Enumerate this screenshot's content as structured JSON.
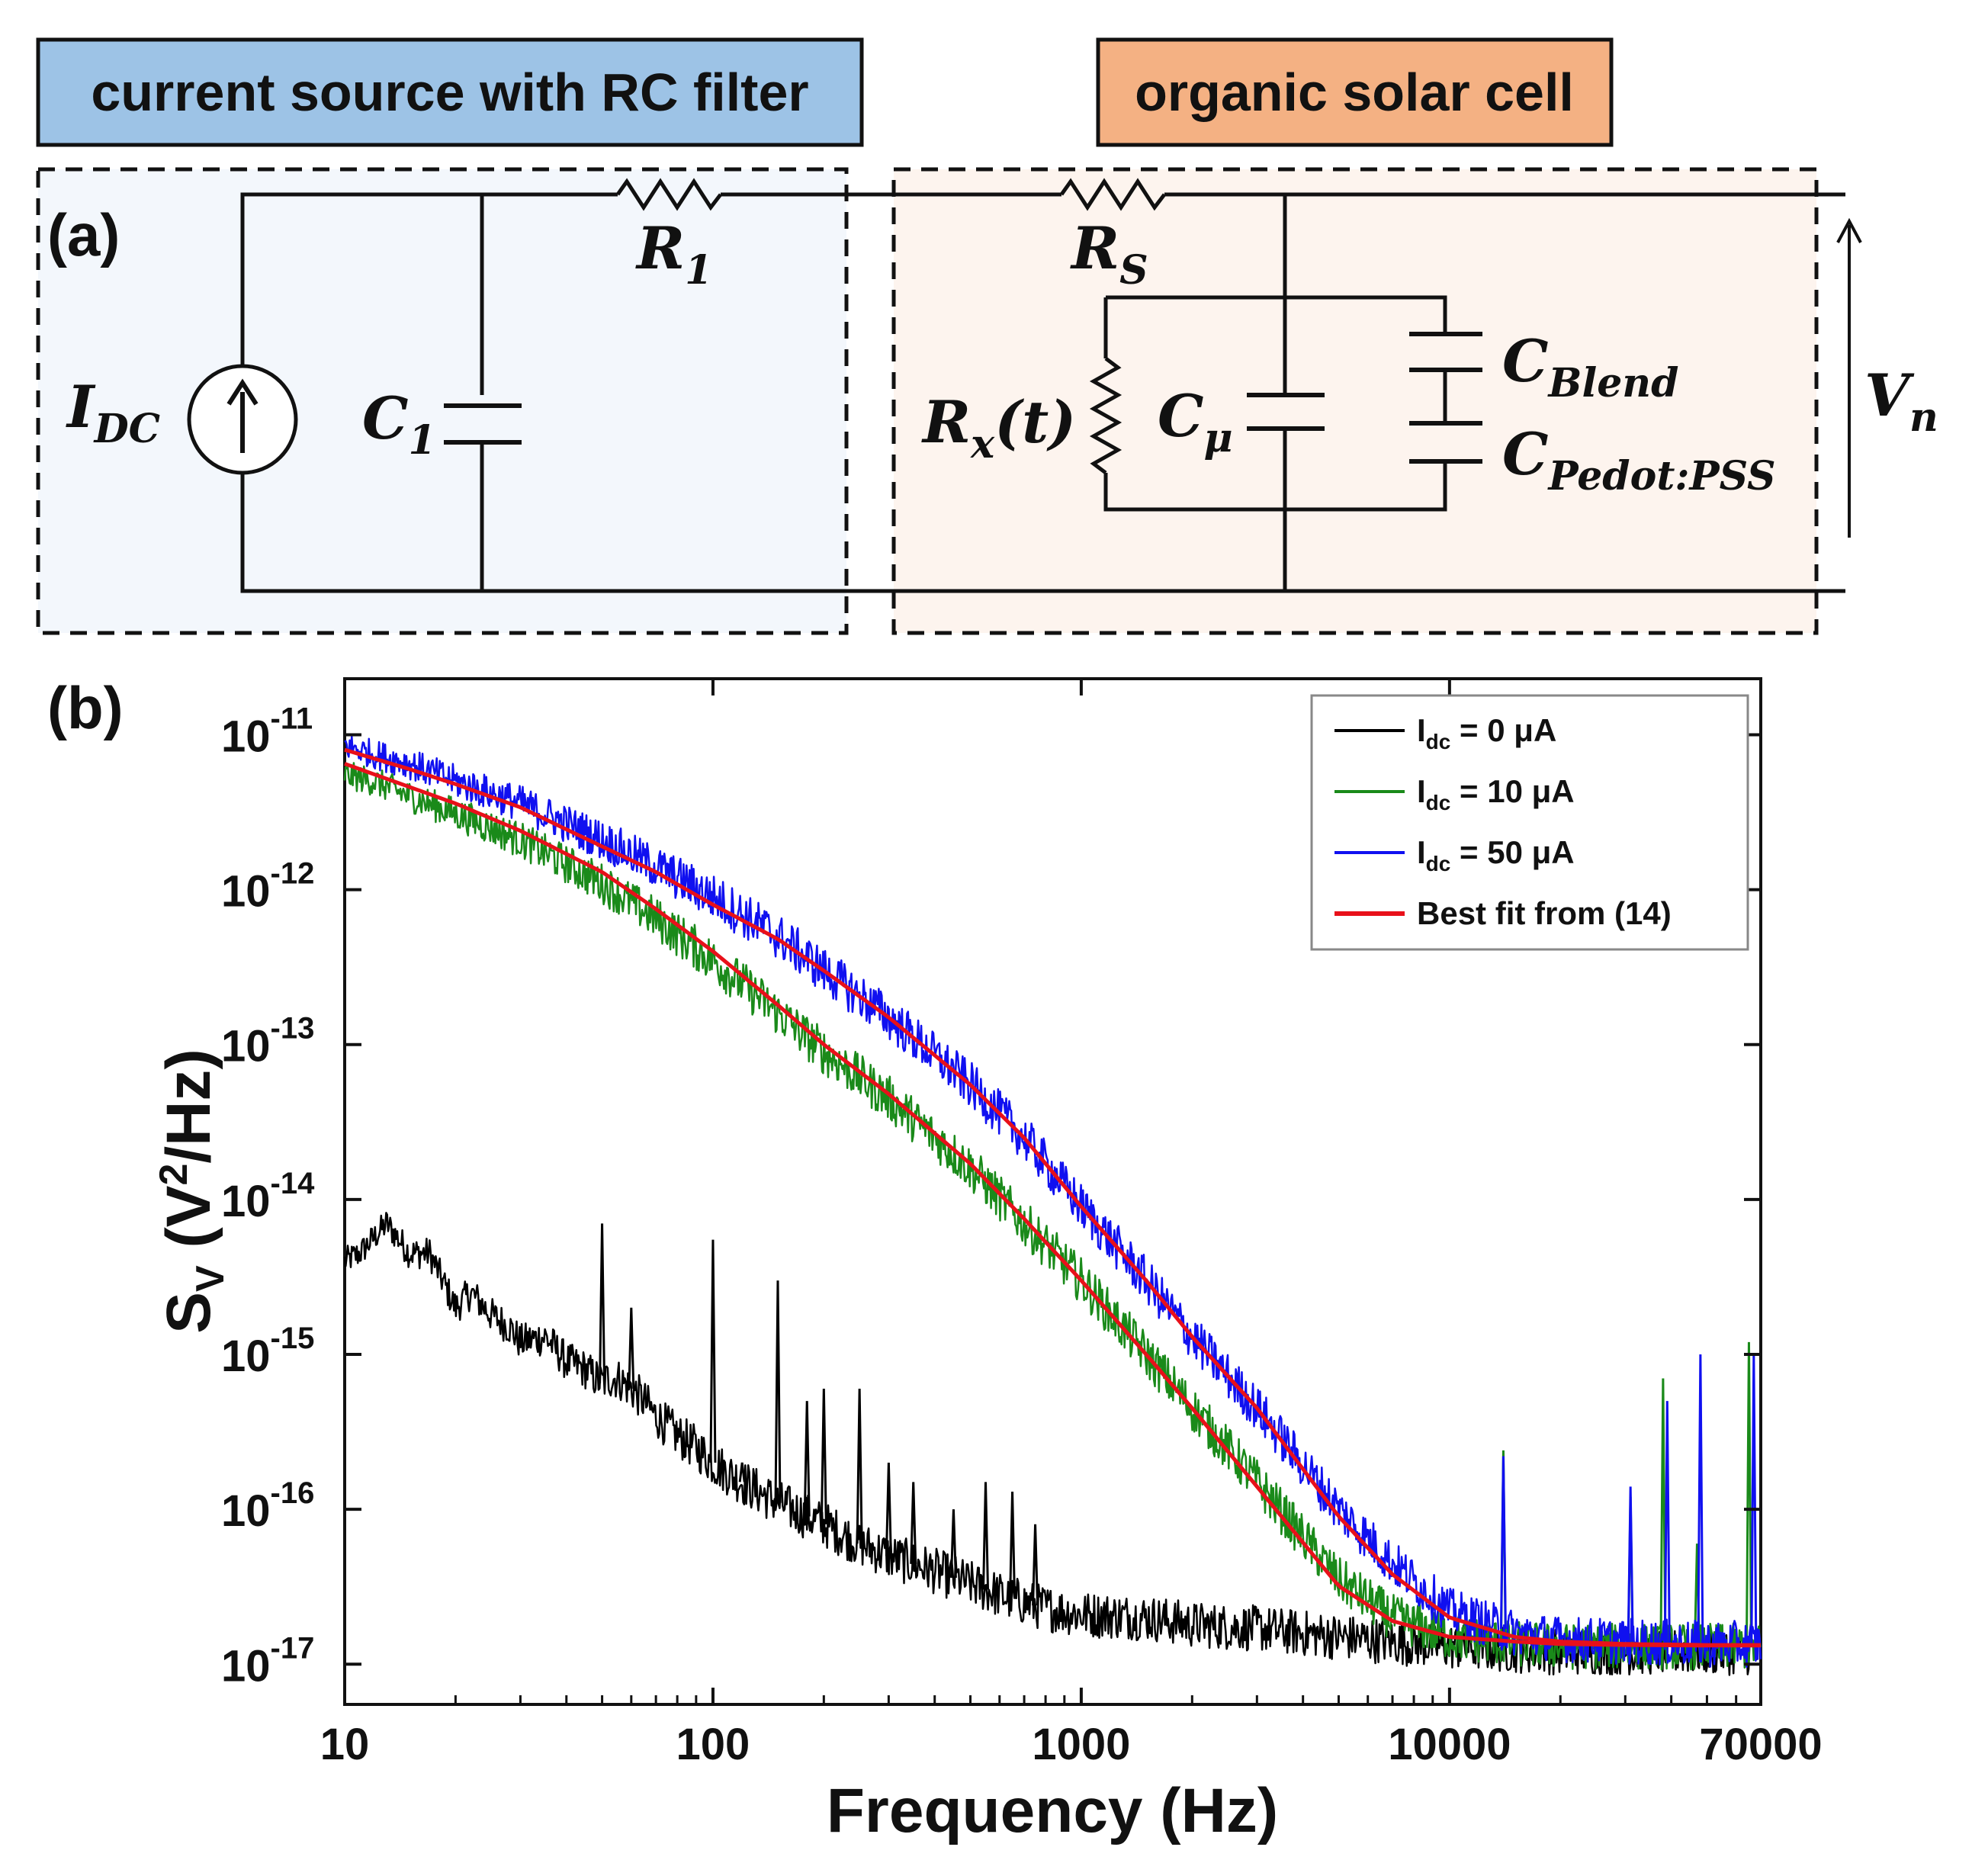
{
  "panel_a": {
    "label": "(a)",
    "header_left": "current source with RC filter",
    "header_right": "organic solar cell",
    "colors": {
      "left_fill": "#9DC3E6",
      "right_fill": "#F4B183"
    },
    "components": {
      "current_source": {
        "sym": "I",
        "sub": "DC"
      },
      "c1": {
        "sym": "C",
        "sub": "1"
      },
      "r1": {
        "sym": "R",
        "sub": "1"
      },
      "rs": {
        "sym": "R",
        "sub": "S"
      },
      "rx": {
        "sym": "R",
        "sub": "x",
        "suffix": "(t)"
      },
      "cmu": {
        "sym": "C",
        "sub": "μ"
      },
      "cblend": {
        "sym": "C",
        "sub": "Blend"
      },
      "cpedot": {
        "sym": "C",
        "sub": "Pedot:PSS"
      },
      "vn": {
        "sym": "V",
        "sub": "n"
      }
    }
  },
  "panel_b": {
    "label": "(b)"
  },
  "chart_data": {
    "type": "line",
    "xscale": "log",
    "yscale": "log",
    "xlim": [
      10,
      70000
    ],
    "ylim": [
      5.5e-18,
      2.3e-11
    ],
    "xlabel": "Frequency (Hz)",
    "ylabel": {
      "base": "S",
      "sub": "V",
      "unit_open": " (V",
      "sup": "2",
      "unit_close": "/Hz)"
    },
    "xticks": [
      {
        "value": 10,
        "label": "10"
      },
      {
        "value": 100,
        "label": "100"
      },
      {
        "value": 1000,
        "label": "1000"
      },
      {
        "value": 10000,
        "label": "10000"
      },
      {
        "value": 70000,
        "label": "70000"
      }
    ],
    "yticks": [
      {
        "value": 1e-11,
        "base": "10",
        "exp": "-11"
      },
      {
        "value": 1e-12,
        "base": "10",
        "exp": "-12"
      },
      {
        "value": 1e-13,
        "base": "10",
        "exp": "-13"
      },
      {
        "value": 1e-14,
        "base": "10",
        "exp": "-14"
      },
      {
        "value": 1e-15,
        "base": "10",
        "exp": "-15"
      },
      {
        "value": 1e-16,
        "base": "10",
        "exp": "-16"
      },
      {
        "value": 1e-17,
        "base": "10",
        "exp": "-17"
      }
    ],
    "legend": {
      "position": "top-right",
      "entries": [
        {
          "name": "Idc = 0 μA",
          "main": "I",
          "sub": "dc",
          "rest": " = 0 μA",
          "color": "#000000"
        },
        {
          "name": "Idc = 10 μA",
          "main": "I",
          "sub": "dc",
          "rest": " = 10 μA",
          "color": "#1A8A1A"
        },
        {
          "name": "Idc = 50 μA",
          "main": "I",
          "sub": "dc",
          "rest": " = 50 μA",
          "color": "#1010F0"
        },
        {
          "name": "Best fit from (14)",
          "main": "Best fit from (14)",
          "sub": "",
          "rest": "",
          "color": "#E8101A"
        }
      ]
    },
    "series": [
      {
        "name": "Idc = 0 μA",
        "color": "#000000",
        "x": [
          10,
          11,
          13,
          15,
          17,
          20,
          22,
          25,
          28,
          30,
          35,
          40,
          45,
          50,
          52,
          55,
          60,
          65,
          70,
          80,
          90,
          100,
          120,
          150,
          200,
          250,
          300,
          400,
          500,
          600,
          700,
          800,
          1000,
          1500,
          2000,
          3000,
          5000,
          7000,
          10000,
          20000,
          40000,
          70000
        ],
        "y": [
          4e-15,
          4.5e-15,
          7e-15,
          4.5e-15,
          4.5e-15,
          2e-15,
          2.5e-15,
          1.8e-15,
          1.5e-15,
          1.2e-15,
          1.3e-15,
          9e-16,
          8e-16,
          6.5e-16,
          7e-16,
          7e-16,
          6e-16,
          5e-16,
          4e-16,
          3e-16,
          2.5e-16,
          2e-16,
          1.5e-16,
          1.1e-16,
          8e-17,
          6e-17,
          5e-17,
          4e-17,
          3.3e-17,
          2.8e-17,
          2.5e-17,
          2.3e-17,
          2.1e-17,
          2e-17,
          1.8e-17,
          1.7e-17,
          1.5e-17,
          1.4e-17,
          1.3e-17,
          1.2e-17,
          1.2e-17,
          1.2e-17
        ],
        "spikes": [
          {
            "x": 50,
            "y": 7e-15
          },
          {
            "x": 60,
            "y": 2e-15
          },
          {
            "x": 100,
            "y": 5.5e-15
          },
          {
            "x": 120,
            "y": 2e-16
          },
          {
            "x": 150,
            "y": 3e-15
          },
          {
            "x": 180,
            "y": 5e-16
          },
          {
            "x": 200,
            "y": 6e-16
          },
          {
            "x": 250,
            "y": 6e-16
          },
          {
            "x": 300,
            "y": 2e-16
          },
          {
            "x": 350,
            "y": 1.5e-16
          },
          {
            "x": 450,
            "y": 1e-16
          },
          {
            "x": 550,
            "y": 1.5e-16
          },
          {
            "x": 650,
            "y": 1.3e-16
          },
          {
            "x": 750,
            "y": 8e-17
          }
        ]
      },
      {
        "name": "Idc = 10 μA",
        "color": "#1A8A1A",
        "x": [
          10,
          12,
          15,
          20,
          30,
          50,
          70,
          100,
          150,
          200,
          300,
          500,
          700,
          1000,
          1500,
          2000,
          3000,
          5000,
          7000,
          10000,
          15000,
          20000,
          30000,
          50000,
          70000
        ],
        "y": [
          5.5e-12,
          5e-12,
          4e-12,
          3.1e-12,
          2.1e-12,
          1.1e-12,
          6.5e-13,
          3.5e-13,
          1.6e-13,
          9e-14,
          4.5e-14,
          1.6e-14,
          7e-15,
          3e-15,
          1e-15,
          4.5e-16,
          1.5e-16,
          3.5e-17,
          2e-17,
          1.5e-17,
          1.35e-17,
          1.3e-17,
          1.3e-17,
          1.3e-17,
          1.3e-17
        ],
        "spikes": [
          {
            "x": 14000,
            "y": 2.4e-16
          },
          {
            "x": 31000,
            "y": 1.2e-16
          },
          {
            "x": 38000,
            "y": 7e-16
          },
          {
            "x": 47000,
            "y": 6e-17
          },
          {
            "x": 65000,
            "y": 1.2e-15
          }
        ]
      },
      {
        "name": "Idc = 50 μA",
        "color": "#1010F0",
        "x": [
          10,
          12,
          15,
          20,
          30,
          50,
          70,
          100,
          150,
          200,
          300,
          500,
          700,
          1000,
          1500,
          2000,
          3000,
          5000,
          7000,
          10000,
          15000,
          20000,
          30000,
          50000,
          70000
        ],
        "y": [
          8.5e-12,
          7.5e-12,
          6.5e-12,
          5e-12,
          3.6e-12,
          2.1e-12,
          1.4e-12,
          9e-13,
          5e-13,
          3e-13,
          1.5e-13,
          5.5e-14,
          2.5e-14,
          9e-15,
          3e-15,
          1.3e-15,
          4.5e-16,
          1e-16,
          4.5e-17,
          2.2e-17,
          1.6e-17,
          1.45e-17,
          1.4e-17,
          1.35e-17,
          1.35e-17
        ],
        "spikes": [
          {
            "x": 14000,
            "y": 2.2e-16
          },
          {
            "x": 31000,
            "y": 1.4e-16
          },
          {
            "x": 39000,
            "y": 5e-16
          },
          {
            "x": 48000,
            "y": 1e-15
          },
          {
            "x": 67000,
            "y": 1e-15
          }
        ]
      },
      {
        "name": "Best fit from (14) — 10 μA",
        "color": "#E8101A",
        "smooth": true,
        "x": [
          10,
          15,
          20,
          30,
          50,
          70,
          100,
          150,
          200,
          300,
          500,
          700,
          1000,
          1500,
          2000,
          3000,
          5000,
          7000,
          10000,
          15000,
          20000,
          30000,
          50000,
          70000
        ],
        "y": [
          6.5e-12,
          4.6e-12,
          3.6e-12,
          2.4e-12,
          1.3e-12,
          7.5e-13,
          4e-13,
          1.8e-13,
          1e-13,
          4.8e-14,
          1.7e-14,
          7.5e-15,
          3e-15,
          1e-15,
          4.5e-16,
          1.4e-16,
          3.2e-17,
          1.9e-17,
          1.5e-17,
          1.4e-17,
          1.35e-17,
          1.33e-17,
          1.32e-17,
          1.32e-17
        ]
      },
      {
        "name": "Best fit from (14) — 50 μA",
        "color": "#E8101A",
        "smooth": true,
        "x": [
          10,
          15,
          20,
          30,
          50,
          70,
          100,
          150,
          200,
          300,
          500,
          700,
          1000,
          1500,
          2000,
          3000,
          5000,
          7000,
          10000,
          15000,
          20000,
          30000,
          50000,
          70000
        ],
        "y": [
          8e-12,
          6e-12,
          4.8e-12,
          3.4e-12,
          1.9e-12,
          1.3e-12,
          8e-13,
          4.8e-13,
          3e-13,
          1.5e-13,
          5.5e-14,
          2.5e-14,
          9e-15,
          3e-15,
          1.3e-15,
          4.5e-16,
          9e-17,
          3.8e-17,
          2e-17,
          1.5e-17,
          1.4e-17,
          1.35e-17,
          1.33e-17,
          1.33e-17
        ]
      }
    ]
  }
}
